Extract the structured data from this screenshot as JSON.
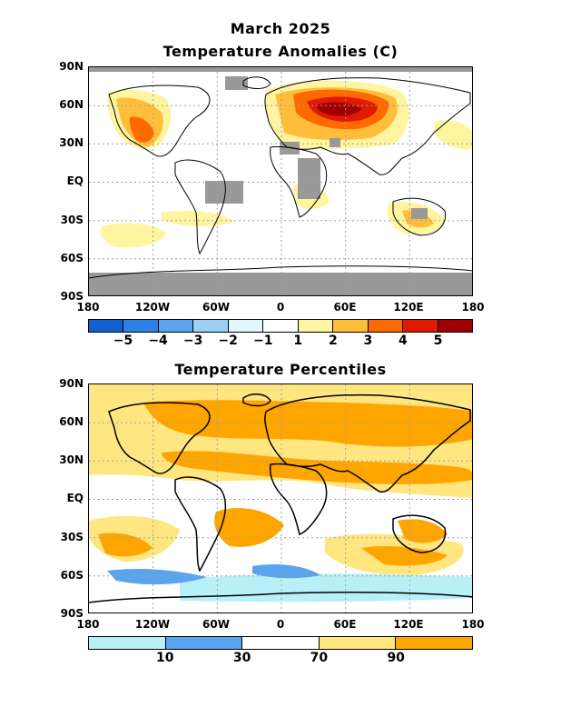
{
  "header": {
    "month_title": "March 2025",
    "anomaly_title": "Temperature Anomalies (C)",
    "percentile_title": "Temperature Percentiles"
  },
  "axes": {
    "lat_labels": [
      "90N",
      "60N",
      "30N",
      "EQ",
      "30S",
      "60S",
      "90S"
    ],
    "lon_labels": [
      "180",
      "120W",
      "60W",
      "0",
      "60E",
      "120E",
      "180"
    ]
  },
  "anomaly_colorbar": {
    "colors": [
      "#1560d0",
      "#2e7fe6",
      "#5aa3ee",
      "#9dcff5",
      "#dff6fb",
      "#ffffff",
      "#fff4a0",
      "#ffbe3a",
      "#ff6a00",
      "#e01a00",
      "#a00000"
    ],
    "labels": [
      "−5",
      "−4",
      "−3",
      "−2",
      "−1",
      "1",
      "2",
      "3",
      "4",
      "5"
    ]
  },
  "percentile_colorbar": {
    "colors": [
      "#b8f0f8",
      "#5aa3ee",
      "#ffffff",
      "#ffe680",
      "#ffa500"
    ],
    "labels": [
      "10",
      "30",
      "70",
      "90"
    ]
  },
  "colors": {
    "missing": "#999999",
    "coast": "#000000",
    "grid": "#a0a0a0"
  }
}
